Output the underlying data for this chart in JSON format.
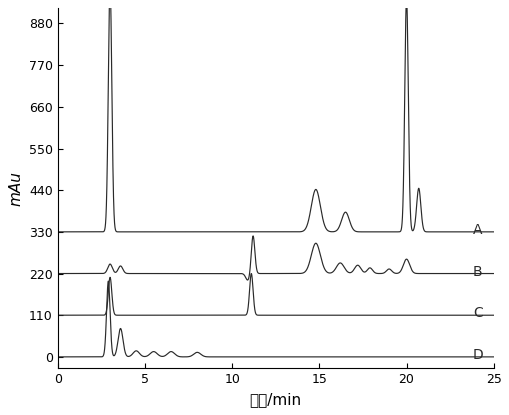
{
  "title": "",
  "xlabel": "时间/min",
  "ylabel": "mAu",
  "xlim": [
    0,
    25
  ],
  "ylim": [
    -30,
    920
  ],
  "yticks": [
    0,
    110,
    220,
    330,
    440,
    550,
    660,
    770,
    880
  ],
  "xticks": [
    0,
    5,
    10,
    15,
    20,
    25
  ],
  "line_color": "#2a2a2a",
  "background_color": "#ffffff",
  "label_A": "A",
  "label_B": "B",
  "label_C": "C",
  "label_D": "D",
  "baseline_A": 330,
  "baseline_B": 220,
  "baseline_C": 110,
  "baseline_D": 0,
  "figsize": [
    5.1,
    4.15
  ],
  "dpi": 100
}
